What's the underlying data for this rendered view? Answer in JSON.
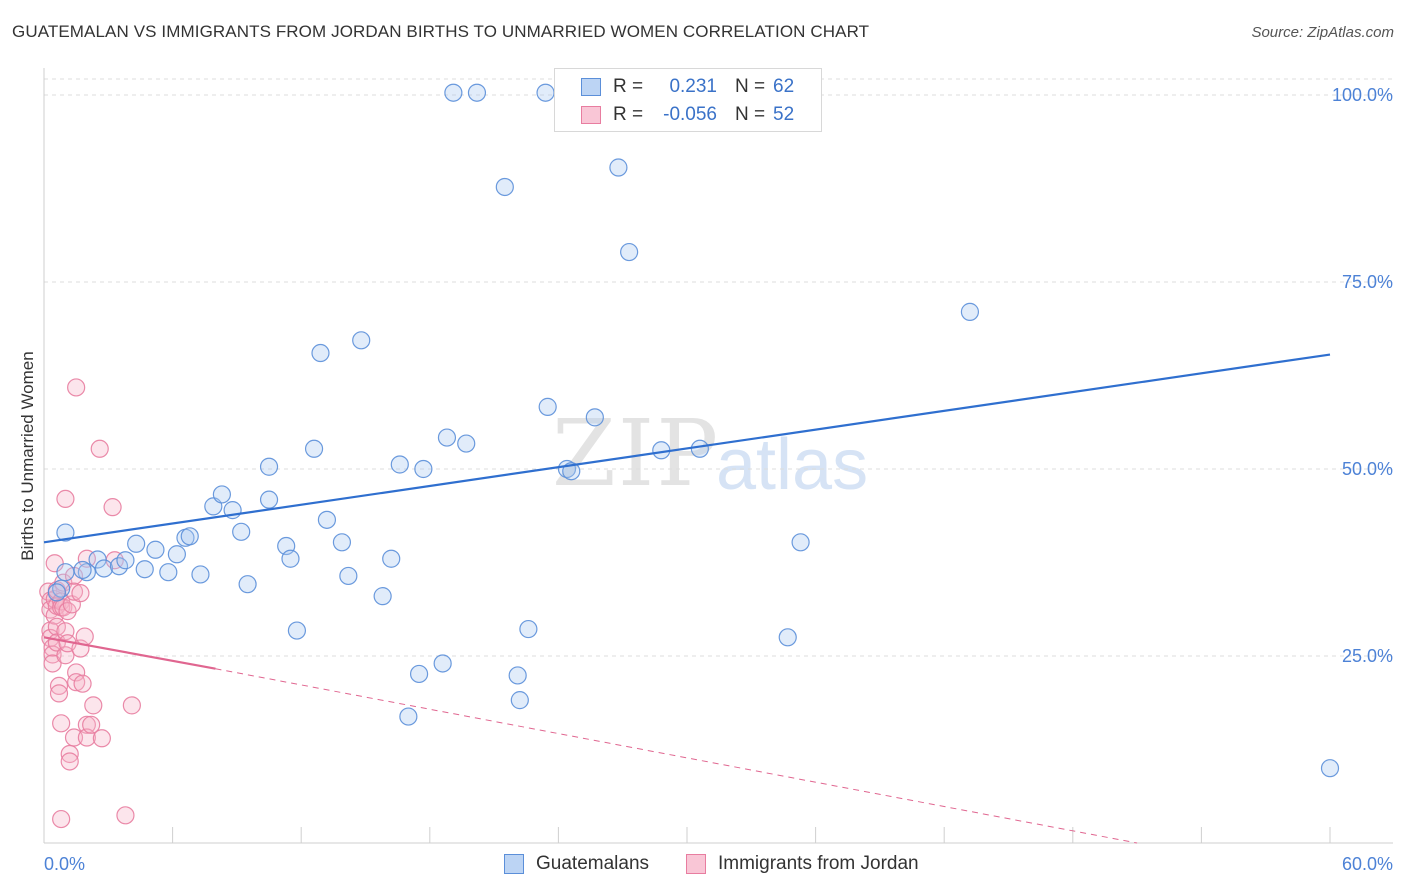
{
  "title": "GUATEMALAN VS IMMIGRANTS FROM JORDAN BIRTHS TO UNMARRIED WOMEN CORRELATION CHART",
  "source": "Source: ZipAtlas.com",
  "watermark": {
    "part1": "ZIP",
    "part2": "atlas"
  },
  "colors": {
    "blue_fill": "#a9c8f0",
    "blue_stroke": "#5b8fd9",
    "blue_line": "#2f6fcf",
    "pink_fill": "#f7b4c8",
    "pink_stroke": "#e87da0",
    "pink_line": "#e06690",
    "axis_text": "#4d82d6",
    "grid": "#dcdcdc"
  },
  "legend_top": {
    "rows": [
      {
        "r_label": "R =",
        "r_value": "0.231",
        "n_label": "N =",
        "n_value": "62"
      },
      {
        "r_label": "R =",
        "r_value": "-0.056",
        "n_label": "N =",
        "n_value": "52"
      }
    ]
  },
  "legend_bottom": {
    "series1": "Guatemalans",
    "series2": "Immigrants from Jordan"
  },
  "chart_data": {
    "type": "scatter",
    "title": "GUATEMALAN VS IMMIGRANTS FROM JORDAN BIRTHS TO UNMARRIED WOMEN CORRELATION CHART",
    "xlabel": "",
    "ylabel": "Births to Unmarried Women",
    "xlim": [
      0,
      60
    ],
    "ylim": [
      0,
      102
    ],
    "x_tick_labels": [
      "0.0%",
      "60.0%"
    ],
    "y_ticks": [
      25,
      50,
      75,
      100
    ],
    "y_tick_labels": [
      "25.0%",
      "50.0%",
      "75.0%",
      "100.0%"
    ],
    "grid": true,
    "series": [
      {
        "name": "Guatemalans",
        "color": "blue",
        "r": 0.231,
        "n": 62,
        "trend": {
          "x1": 0,
          "y1": 40.2,
          "x2": 60,
          "y2": 65.3
        },
        "points": [
          [
            0.8,
            34.0
          ],
          [
            1.0,
            41.5
          ],
          [
            1.0,
            36.2
          ],
          [
            2.0,
            36.2
          ],
          [
            2.5,
            37.9
          ],
          [
            2.8,
            36.7
          ],
          [
            3.5,
            37.0
          ],
          [
            3.8,
            37.8
          ],
          [
            4.3,
            40.0
          ],
          [
            4.7,
            36.6
          ],
          [
            5.2,
            39.2
          ],
          [
            5.8,
            36.2
          ],
          [
            6.2,
            38.6
          ],
          [
            6.6,
            40.8
          ],
          [
            6.8,
            41.0
          ],
          [
            7.3,
            35.9
          ],
          [
            7.9,
            45.0
          ],
          [
            8.3,
            46.6
          ],
          [
            8.8,
            44.5
          ],
          [
            9.2,
            41.6
          ],
          [
            9.5,
            34.6
          ],
          [
            10.5,
            45.9
          ],
          [
            10.5,
            50.3
          ],
          [
            11.3,
            39.7
          ],
          [
            11.5,
            38.0
          ],
          [
            11.8,
            28.4
          ],
          [
            12.6,
            52.7
          ],
          [
            12.9,
            65.5
          ],
          [
            13.2,
            43.2
          ],
          [
            13.9,
            40.2
          ],
          [
            14.2,
            35.7
          ],
          [
            14.8,
            67.2
          ],
          [
            15.8,
            33.0
          ],
          [
            16.2,
            38.0
          ],
          [
            16.6,
            50.6
          ],
          [
            17.0,
            16.9
          ],
          [
            17.5,
            22.6
          ],
          [
            17.7,
            50.0
          ],
          [
            18.6,
            24.0
          ],
          [
            18.8,
            54.2
          ],
          [
            19.1,
            100.3
          ],
          [
            19.7,
            53.4
          ],
          [
            20.2,
            100.3
          ],
          [
            21.5,
            87.7
          ],
          [
            22.1,
            22.4
          ],
          [
            22.2,
            19.1
          ],
          [
            22.6,
            28.6
          ],
          [
            23.4,
            100.3
          ],
          [
            23.5,
            58.3
          ],
          [
            24.4,
            50.0
          ],
          [
            24.6,
            49.7
          ],
          [
            25.7,
            56.9
          ],
          [
            26.8,
            90.3
          ],
          [
            27.3,
            79.0
          ],
          [
            28.8,
            52.5
          ],
          [
            30.6,
            52.7
          ],
          [
            34.7,
            27.5
          ],
          [
            35.3,
            40.2
          ],
          [
            43.2,
            71.0
          ],
          [
            60.0,
            10.0
          ],
          [
            0.6,
            33.5
          ],
          [
            1.8,
            36.5
          ]
        ]
      },
      {
        "name": "Immigrants from Jordan",
        "color": "pink",
        "r": -0.056,
        "n": 52,
        "trend": {
          "x1": 0,
          "y1": 27.5,
          "x2": 8.0,
          "y2": 23.3
        },
        "trend_dashed": {
          "x1": 8.0,
          "y1": 23.3,
          "x2": 51.0,
          "y2": 0.0
        },
        "points": [
          [
            0.2,
            33.6
          ],
          [
            0.3,
            32.4
          ],
          [
            0.3,
            31.2
          ],
          [
            0.3,
            28.4
          ],
          [
            0.3,
            27.4
          ],
          [
            0.4,
            26.1
          ],
          [
            0.4,
            25.2
          ],
          [
            0.4,
            24.0
          ],
          [
            0.5,
            37.4
          ],
          [
            0.5,
            32.6
          ],
          [
            0.5,
            30.4
          ],
          [
            0.6,
            33.8
          ],
          [
            0.6,
            31.7
          ],
          [
            0.6,
            28.9
          ],
          [
            0.6,
            26.8
          ],
          [
            0.7,
            21.0
          ],
          [
            0.7,
            20.0
          ],
          [
            0.8,
            32.3
          ],
          [
            0.8,
            31.5
          ],
          [
            0.8,
            16.0
          ],
          [
            0.9,
            34.8
          ],
          [
            0.9,
            31.5
          ],
          [
            1.0,
            46.0
          ],
          [
            1.0,
            28.3
          ],
          [
            1.0,
            25.1
          ],
          [
            1.1,
            26.7
          ],
          [
            1.1,
            31.0
          ],
          [
            1.2,
            11.9
          ],
          [
            1.2,
            10.9
          ],
          [
            1.3,
            31.9
          ],
          [
            1.4,
            35.7
          ],
          [
            1.4,
            33.6
          ],
          [
            1.4,
            14.1
          ],
          [
            1.5,
            60.9
          ],
          [
            1.5,
            22.8
          ],
          [
            1.5,
            21.5
          ],
          [
            1.7,
            33.4
          ],
          [
            1.7,
            26.0
          ],
          [
            1.8,
            21.3
          ],
          [
            1.9,
            27.6
          ],
          [
            2.0,
            15.8
          ],
          [
            2.0,
            14.1
          ],
          [
            2.0,
            38.0
          ],
          [
            2.2,
            15.8
          ],
          [
            2.3,
            18.4
          ],
          [
            2.6,
            52.7
          ],
          [
            2.7,
            14.0
          ],
          [
            3.2,
            44.9
          ],
          [
            3.3,
            37.8
          ],
          [
            0.8,
            3.2
          ],
          [
            3.8,
            3.7
          ],
          [
            4.1,
            18.4
          ]
        ]
      }
    ]
  }
}
